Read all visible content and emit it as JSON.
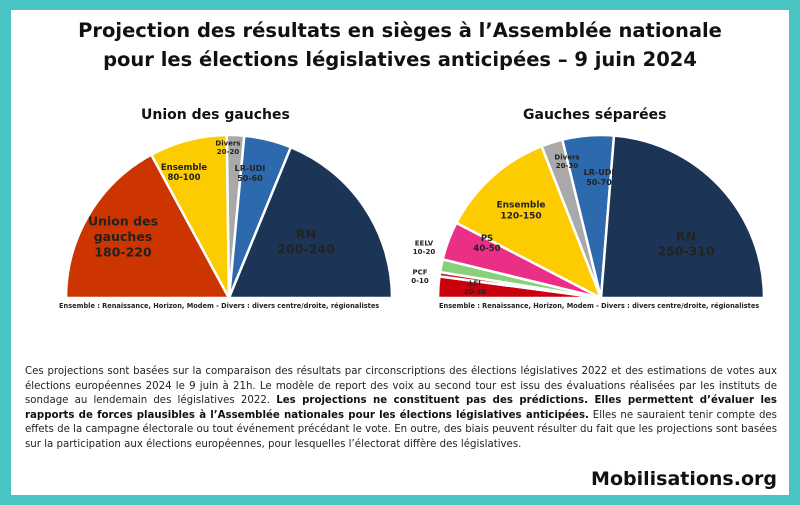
{
  "title": {
    "line1": "Projection des résultats en sièges à l’Assemblée nationale",
    "line2": "pour les élections législatives anticipées – 9 juin 2024"
  },
  "chart_data": [
    {
      "type": "pie",
      "title": "Union des gauches",
      "unit": "sièges",
      "categories": [
        "Union des gauches",
        "Ensemble",
        "Divers",
        "LR-UDI",
        "RN"
      ],
      "ranges": [
        "180-220",
        "80-100",
        "20-20",
        "50-60",
        "200-240"
      ],
      "values": [
        200,
        90,
        20,
        55,
        220
      ],
      "colors": [
        "#cc3400",
        "#fccb00",
        "#a9a9a9",
        "#2d6aad",
        "#1c3557"
      ],
      "note": "Ensemble : Renaissance, Horizon, Modem - Divers : divers centre/droite, régionalistes"
    },
    {
      "type": "pie",
      "title": "Gauches séparées",
      "unit": "sièges",
      "categories": [
        "LFI",
        "PCF",
        "EELV",
        "PS",
        "Ensemble",
        "Divers",
        "LR-UDI",
        "RN"
      ],
      "ranges": [
        "20-30",
        "0-10",
        "10-20",
        "40-50",
        "120-150",
        "20-30",
        "50-70",
        "250-310"
      ],
      "values": [
        25,
        5,
        15,
        45,
        135,
        25,
        60,
        280
      ],
      "colors": [
        "#c9000e",
        "#c81e24",
        "#86d17a",
        "#ec2f86",
        "#fccb00",
        "#a9a9a9",
        "#2d6aad",
        "#1c3557"
      ],
      "note": "Ensemble : Renaissance, Horizon, Modem - Divers : divers centre/droite, régionalistes"
    }
  ],
  "description": {
    "part1": "Ces projections sont basées sur la comparaison des résultats par circonscriptions des élections législatives 2022 et des estimations de votes aux élections européennes 2024 le 9 juin à 21h. Le modèle de report des voix au second tour est issu des évaluations réalisées par les instituts de sondage au lendemain des législatives 2022. ",
    "bold": "Les projections ne constituent pas des prédictions. Elles permettent d’évaluer les rapports de forces plausibles à l’Assemblée nationales pour les élections législatives anticipées.",
    "part2": " Elles ne sauraient tenir compte des effets de la campagne électorale ou tout événement précédant le vote. En outre, des biais peuvent résulter du fait que les projections sont basées sur la participation aux élections européennes, pour lesquelles l’électorat diffère des législatives."
  },
  "brand": "Mobilisations.org"
}
